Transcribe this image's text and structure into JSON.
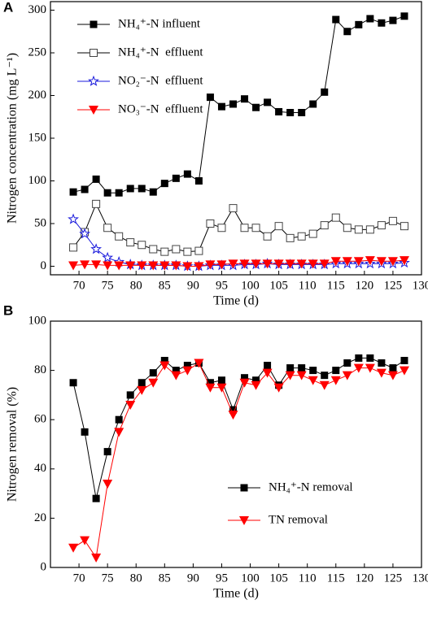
{
  "chart_data": [
    {
      "type": "line",
      "panel_label": "A",
      "x_label": "Time (d)",
      "y_label": "Nitrogen concentration (mg L⁻¹)",
      "xlim": [
        65,
        130
      ],
      "xticks": [
        70,
        75,
        80,
        85,
        90,
        95,
        100,
        105,
        110,
        115,
        120,
        125,
        130
      ],
      "ylim": [
        -10,
        310
      ],
      "yticks": [
        0,
        50,
        100,
        150,
        200,
        250,
        300
      ],
      "legend": "upper left",
      "x": [
        69,
        71,
        73,
        75,
        77,
        79,
        81,
        83,
        85,
        87,
        89,
        91,
        93,
        95,
        97,
        99,
        101,
        103,
        105,
        107,
        109,
        111,
        113,
        115,
        117,
        119,
        121,
        123,
        125,
        127
      ],
      "series": [
        {
          "name": "NH₄⁺-N influent",
          "color": "#000000",
          "marker": "square",
          "values": [
            87,
            90,
            102,
            86,
            86,
            91,
            91,
            87,
            97,
            103,
            108,
            100,
            198,
            187,
            190,
            196,
            186,
            192,
            181,
            180,
            180,
            190,
            204,
            289,
            275,
            283,
            290,
            285,
            288,
            293
          ]
        },
        {
          "name": "NH₄⁺-N  effluent",
          "color": "#000000",
          "marker": "square-open",
          "values": [
            22,
            40,
            73,
            45,
            35,
            28,
            25,
            20,
            17,
            20,
            17,
            18,
            50,
            45,
            68,
            45,
            45,
            35,
            47,
            33,
            35,
            38,
            48,
            57,
            45,
            43,
            43,
            48,
            53,
            47
          ]
        },
        {
          "name": "NO₂⁻-N  effluent",
          "color": "#1a1adc",
          "marker": "star-open",
          "values": [
            55,
            38,
            20,
            10,
            5,
            2,
            1,
            1,
            1,
            1,
            0,
            0,
            1,
            1,
            1,
            2,
            2,
            3,
            2,
            2,
            2,
            2,
            2,
            3,
            3,
            3,
            3,
            3,
            3,
            4
          ]
        },
        {
          "name": "NO₃⁻-N  effluent",
          "color": "#ff0000",
          "marker": "triangle-down",
          "values": [
            1,
            2,
            2,
            1,
            1,
            1,
            1,
            1,
            1,
            1,
            0,
            0,
            2,
            2,
            3,
            3,
            3,
            3,
            3,
            3,
            3,
            3,
            3,
            6,
            6,
            6,
            7,
            6,
            6,
            7
          ]
        }
      ]
    },
    {
      "type": "line",
      "panel_label": "B",
      "x_label": "Time (d)",
      "y_label": "Nitrogen removal (%)",
      "xlim": [
        65,
        130
      ],
      "xticks": [
        70,
        75,
        80,
        85,
        90,
        95,
        100,
        105,
        110,
        115,
        120,
        125,
        130
      ],
      "ylim": [
        0,
        100
      ],
      "yticks": [
        0,
        20,
        40,
        60,
        80,
        100
      ],
      "legend": "lower right",
      "x": [
        69,
        71,
        73,
        75,
        77,
        79,
        81,
        83,
        85,
        87,
        89,
        91,
        93,
        95,
        97,
        99,
        101,
        103,
        105,
        107,
        109,
        111,
        113,
        115,
        117,
        119,
        121,
        123,
        125,
        127
      ],
      "series": [
        {
          "name": "NH₄⁺-N removal",
          "color": "#000000",
          "marker": "square",
          "values": [
            75,
            55,
            28,
            47,
            60,
            70,
            75,
            79,
            84,
            80,
            82,
            83,
            75,
            76,
            64,
            77,
            76,
            82,
            74,
            81,
            81,
            80,
            78,
            80,
            83,
            85,
            85,
            83,
            81,
            84
          ]
        },
        {
          "name": "TN removal",
          "color": "#ff0000",
          "marker": "triangle-down",
          "values": [
            8,
            11,
            4,
            34,
            55,
            66,
            72,
            75,
            82,
            78,
            80,
            83,
            73,
            73,
            62,
            75,
            74,
            79,
            73,
            78,
            78,
            76,
            74,
            76,
            78,
            81,
            81,
            79,
            78,
            80
          ]
        }
      ]
    }
  ]
}
